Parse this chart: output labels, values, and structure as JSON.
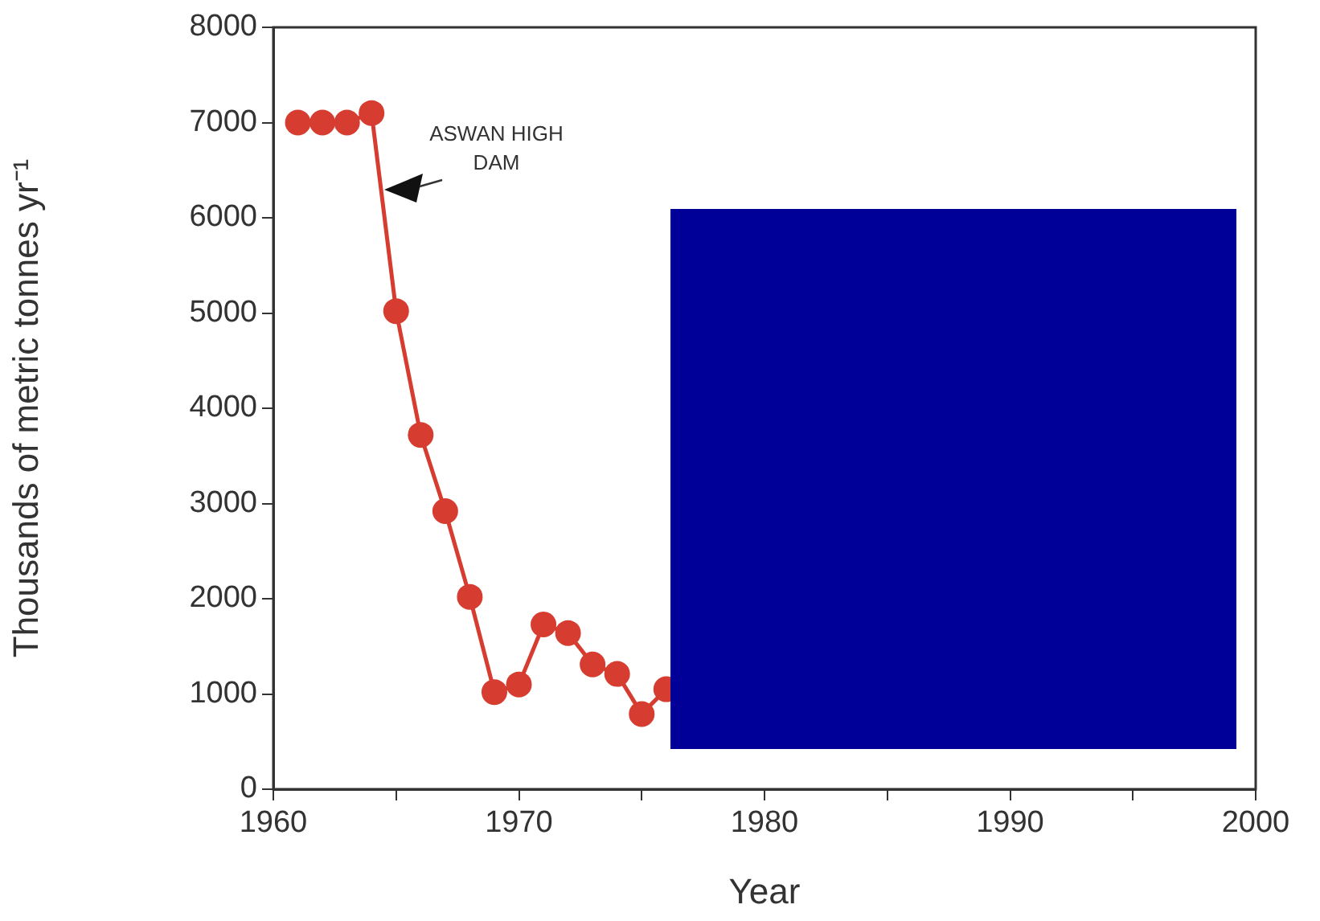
{
  "chart_data": {
    "type": "line",
    "xlabel": "Year",
    "ylabel": "Thousands of metric tonnes yr⁻¹",
    "x": [
      1961,
      1962,
      1963,
      1964,
      1965,
      1966,
      1967,
      1968,
      1969,
      1970,
      1971,
      1972,
      1973,
      1974,
      1975,
      1976
    ],
    "series": [
      {
        "color": "#d63c2f",
        "values": [
          7000,
          7000,
          7000,
          7100,
          5020,
          3720,
          2920,
          2020,
          1020,
          1100,
          1730,
          1640,
          1310,
          1210,
          790,
          1050
        ]
      }
    ],
    "xlim": [
      1960,
      2000
    ],
    "xticks": [
      1960,
      {
        "value": 1965,
        "label": null
      },
      1970,
      {
        "value": 1975,
        "label": null
      },
      1980,
      {
        "value": 1985,
        "label": null
      },
      1990,
      {
        "value": 1995,
        "label": null
      },
      2000
    ],
    "ylim": [
      0,
      8000
    ],
    "yticks": [
      0,
      1000,
      2000,
      3000,
      4000,
      5000,
      6000,
      7000,
      8000
    ],
    "grid": false,
    "legend": false,
    "marker": "circle",
    "line_style": "solid",
    "annotations": [
      {
        "text": "ASWAN HIGH DAM",
        "x": 1964.5,
        "y": 6300
      }
    ]
  }
}
